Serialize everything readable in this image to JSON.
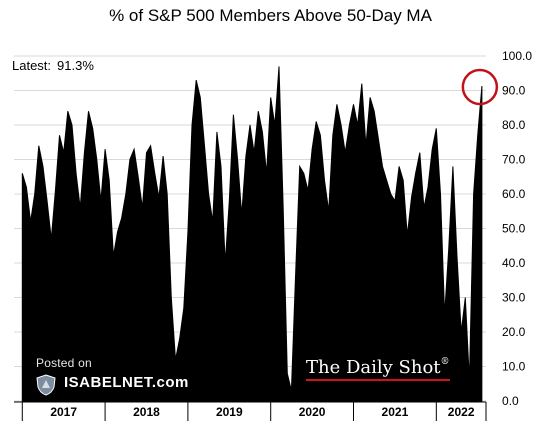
{
  "chart_data": {
    "type": "area",
    "title": "% of S&P 500 Members Above 50-Day MA",
    "xlabel": "",
    "ylabel": "",
    "ylim": [
      0,
      100
    ],
    "y_ticks": [
      "0.0",
      "10.0",
      "20.0",
      "30.0",
      "40.0",
      "50.0",
      "60.0",
      "70.0",
      "80.0",
      "90.0",
      "100.0"
    ],
    "x_ticks": [
      "2017",
      "2018",
      "2019",
      "2020",
      "2021",
      "2022"
    ],
    "x_range": [
      2016.9,
      2022.6
    ],
    "grid": true,
    "fill_color": "#000000",
    "annotation": {
      "label": "Latest:",
      "value": "91.3%",
      "highlight_color": "#c0121a"
    },
    "series": [
      {
        "x": [
          2017.0,
          2017.05,
          2017.1,
          2017.15,
          2017.2,
          2017.25,
          2017.3,
          2017.35,
          2017.4,
          2017.45,
          2017.5,
          2017.55,
          2017.6,
          2017.65,
          2017.7,
          2017.75,
          2017.8,
          2017.85,
          2017.9,
          2017.95,
          2018.0,
          2018.05,
          2018.1,
          2018.15,
          2018.2,
          2018.25,
          2018.3,
          2018.35,
          2018.4,
          2018.45,
          2018.5,
          2018.55,
          2018.6,
          2018.65,
          2018.7,
          2018.75,
          2018.8,
          2018.85,
          2018.9,
          2018.95,
          2019.0,
          2019.05,
          2019.1,
          2019.15,
          2019.2,
          2019.25,
          2019.3,
          2019.35,
          2019.4,
          2019.45,
          2019.5,
          2019.55,
          2019.6,
          2019.65,
          2019.7,
          2019.75,
          2019.8,
          2019.85,
          2019.9,
          2019.95,
          2020.0,
          2020.05,
          2020.1,
          2020.15,
          2020.2,
          2020.25,
          2020.3,
          2020.35,
          2020.4,
          2020.45,
          2020.5,
          2020.55,
          2020.6,
          2020.65,
          2020.7,
          2020.75,
          2020.8,
          2020.85,
          2020.9,
          2020.95,
          2021.0,
          2021.05,
          2021.1,
          2021.15,
          2021.2,
          2021.25,
          2021.3,
          2021.35,
          2021.4,
          2021.45,
          2021.5,
          2021.55,
          2021.6,
          2021.65,
          2021.7,
          2021.75,
          2021.8,
          2021.85,
          2021.9,
          2021.95,
          2022.0,
          2022.05,
          2022.1,
          2022.15,
          2022.2,
          2022.25,
          2022.3,
          2022.35,
          2022.4,
          2022.45,
          2022.5,
          2022.55
        ],
        "y": [
          66,
          62,
          52,
          60,
          74,
          68,
          58,
          47,
          61,
          77,
          72,
          84,
          80,
          66,
          56,
          72,
          84,
          79,
          70,
          58,
          73,
          64,
          42,
          49,
          53,
          60,
          70,
          73,
          65,
          56,
          72,
          74,
          66,
          59,
          71,
          60,
          30,
          12,
          18,
          27,
          49,
          80,
          93,
          88,
          74,
          60,
          52,
          78,
          68,
          40,
          58,
          83,
          70,
          54,
          71,
          80,
          72,
          84,
          78,
          66,
          88,
          80,
          97,
          57,
          8,
          3,
          36,
          68,
          66,
          61,
          73,
          81,
          77,
          64,
          55,
          77,
          86,
          80,
          72,
          80,
          86,
          80,
          92,
          74,
          88,
          84,
          76,
          68,
          64,
          60,
          58,
          68,
          64,
          48,
          59,
          66,
          72,
          56,
          62,
          73,
          79,
          60,
          25,
          44,
          68,
          42,
          20,
          30,
          6,
          60,
          77,
          91.3
        ]
      }
    ]
  }
}
